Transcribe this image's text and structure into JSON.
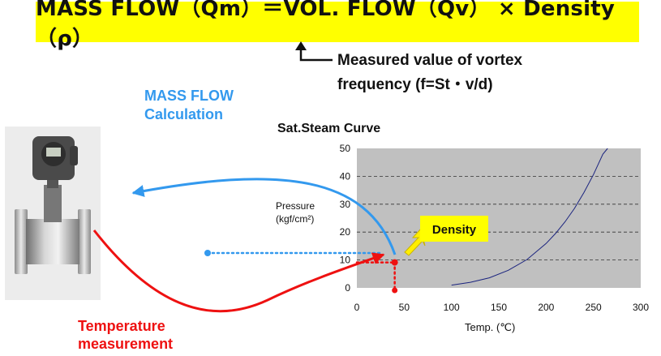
{
  "formula": "MASS FLOW（Qm）＝VOL. FLOW（Qv） × Density（ρ）",
  "note_line1": "Measured value of vortex",
  "note_line2": "frequency (f=St・v/d)",
  "mass_flow_label_line1": "MASS FLOW",
  "mass_flow_label_line2": "Calculation",
  "temperature_label_line1": "Temperature",
  "temperature_label_line2": "measurement",
  "density_label": "Density",
  "chart_data": {
    "type": "line",
    "title": "Sat.Steam Curve",
    "ylabel_line1": "Pressure",
    "ylabel_line2": "(kgf/cm²)",
    "xlabel": "Temp. (℃)",
    "xlim": [
      0,
      300
    ],
    "ylim": [
      0,
      50
    ],
    "xticks": [
      0,
      50,
      100,
      150,
      200,
      250,
      300
    ],
    "yticks": [
      0,
      10,
      20,
      30,
      40,
      50
    ],
    "grid": "horizontal dashed",
    "series": [
      {
        "color": "#1a237e",
        "x": [
          100,
          120,
          140,
          160,
          180,
          200,
          210,
          220,
          230,
          240,
          250,
          260,
          265
        ],
        "y": [
          1.0,
          2.0,
          3.6,
          6.3,
          10.2,
          15.9,
          19.5,
          23.7,
          28.5,
          34.2,
          40.6,
          47.9,
          52.0
        ]
      }
    ],
    "marker_point": {
      "x": 40,
      "y": 10
    }
  },
  "colors": {
    "banner": "#ffff00",
    "blue_arrow": "#3399ee",
    "red_arrow": "#ee1111",
    "plot_bg": "#c0c0c0",
    "curve": "#1a237e"
  }
}
